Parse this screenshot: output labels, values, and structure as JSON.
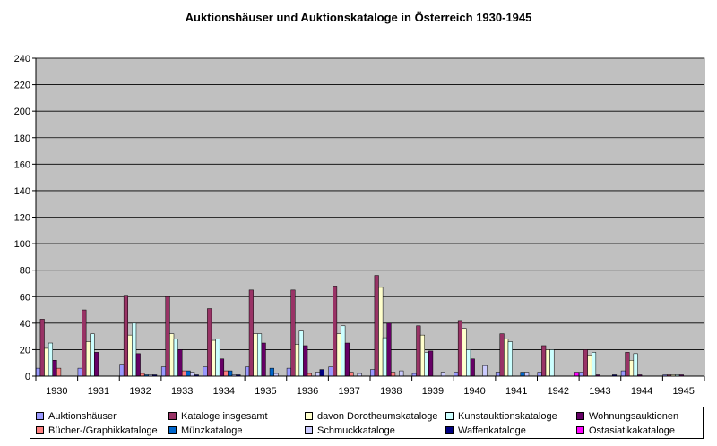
{
  "chart_data": {
    "type": "bar",
    "title": "Auktionshäuser und Auktionskataloge in Österreich 1930-1945",
    "xlabel": "",
    "ylabel": "",
    "ylim": [
      0,
      240
    ],
    "yticks": [
      0,
      20,
      40,
      60,
      80,
      100,
      120,
      140,
      160,
      180,
      200,
      220,
      240
    ],
    "grid": true,
    "legend_position": "bottom",
    "categories": [
      "1930",
      "1931",
      "1932",
      "1933",
      "1934",
      "1935",
      "1936",
      "1937",
      "1938",
      "1939",
      "1940",
      "1941",
      "1942",
      "1943",
      "1944",
      "1945"
    ],
    "series": [
      {
        "name": "Auktionshäuser",
        "color": "#9999FF",
        "values": [
          6,
          6,
          9,
          7,
          7,
          7,
          6,
          7,
          5,
          2,
          3,
          3,
          3,
          3,
          4,
          1
        ]
      },
      {
        "name": "Kataloge insgesamt",
        "color": "#993366",
        "values": [
          43,
          50,
          61,
          60,
          51,
          65,
          65,
          68,
          76,
          38,
          42,
          32,
          23,
          20,
          18,
          1
        ]
      },
      {
        "name": "davon Dorotheumskataloge",
        "color": "#FFFFCC",
        "values": [
          21,
          26,
          31,
          32,
          27,
          32,
          24,
          32,
          67,
          31,
          36,
          28,
          20,
          16,
          12,
          1
        ]
      },
      {
        "name": "Kunstauktionskataloge",
        "color": "#CCFFFF",
        "values": [
          25,
          32,
          40,
          28,
          28,
          32,
          34,
          38,
          29,
          18,
          20,
          26,
          20,
          18,
          17,
          1
        ]
      },
      {
        "name": "Wohnungsauktionen",
        "color": "#660066",
        "values": [
          12,
          18,
          17,
          20,
          13,
          25,
          23,
          25,
          40,
          19,
          13,
          0,
          0,
          1,
          1,
          1
        ]
      },
      {
        "name": "Bücher-/Graphikkataloge",
        "color": "#FF8080",
        "values": [
          6,
          0,
          2,
          4,
          4,
          0,
          2,
          3,
          3,
          0,
          0,
          0,
          0,
          0,
          0,
          0
        ]
      },
      {
        "name": "Münzkataloge",
        "color": "#0066CC",
        "values": [
          0,
          0,
          1,
          4,
          4,
          6,
          0,
          0,
          0,
          0,
          0,
          3,
          0,
          0,
          0,
          0
        ]
      },
      {
        "name": "Schmuckkataloge",
        "color": "#CCCCFF",
        "values": [
          0,
          0,
          1,
          3,
          1,
          2,
          3,
          2,
          4,
          3,
          8,
          3,
          0,
          0,
          0,
          0
        ]
      },
      {
        "name": "Waffenkataloge",
        "color": "#000080",
        "values": [
          0,
          0,
          1,
          1,
          1,
          0,
          5,
          0,
          0,
          0,
          0,
          0,
          0,
          1,
          0,
          0
        ]
      },
      {
        "name": "Ostasiatikakataloge",
        "color": "#FF00FF",
        "values": [
          0,
          0,
          0,
          0,
          0,
          0,
          0,
          0,
          0,
          0,
          0,
          0,
          3,
          0,
          0,
          0
        ]
      }
    ]
  }
}
